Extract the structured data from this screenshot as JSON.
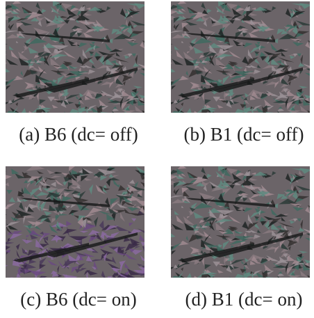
{
  "panels": [
    {
      "caption": "(a) B6 (dc= off)"
    },
    {
      "caption": "(b) B1 (dc= off)"
    },
    {
      "caption": "(c) B6 (dc= on)"
    },
    {
      "caption": "(d) B1 (dc= on)"
    }
  ]
}
